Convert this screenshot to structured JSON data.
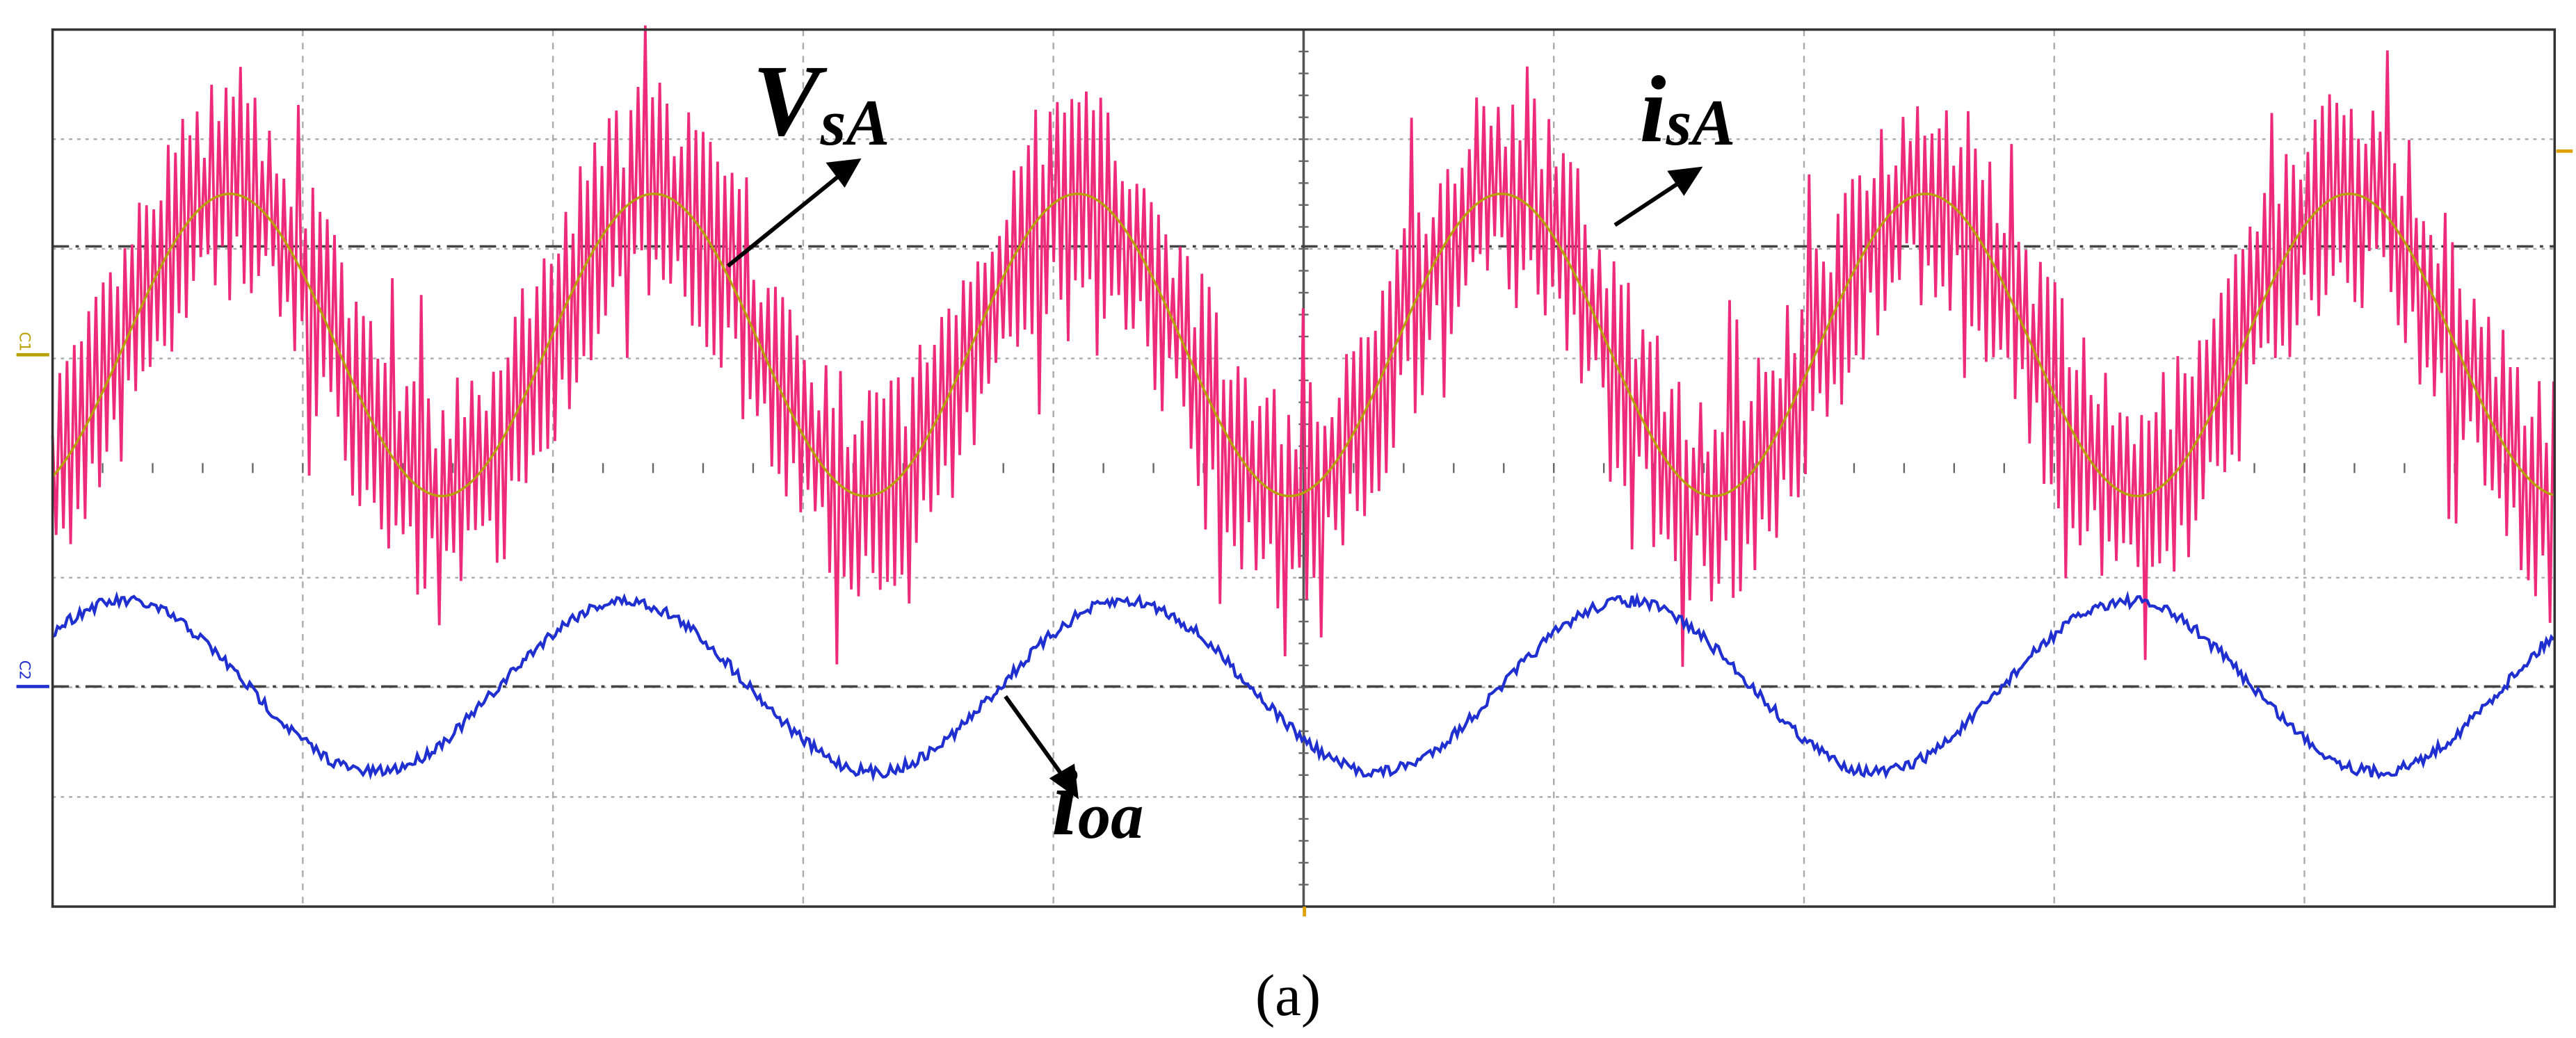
{
  "annotations": [
    {
      "main": "V",
      "sub": "sA"
    },
    {
      "main": "i",
      "sub": "sA"
    },
    {
      "main": "i",
      "sub": "oa"
    }
  ],
  "channel_markers": [
    "C1",
    "C2"
  ],
  "caption": "(a)"
}
